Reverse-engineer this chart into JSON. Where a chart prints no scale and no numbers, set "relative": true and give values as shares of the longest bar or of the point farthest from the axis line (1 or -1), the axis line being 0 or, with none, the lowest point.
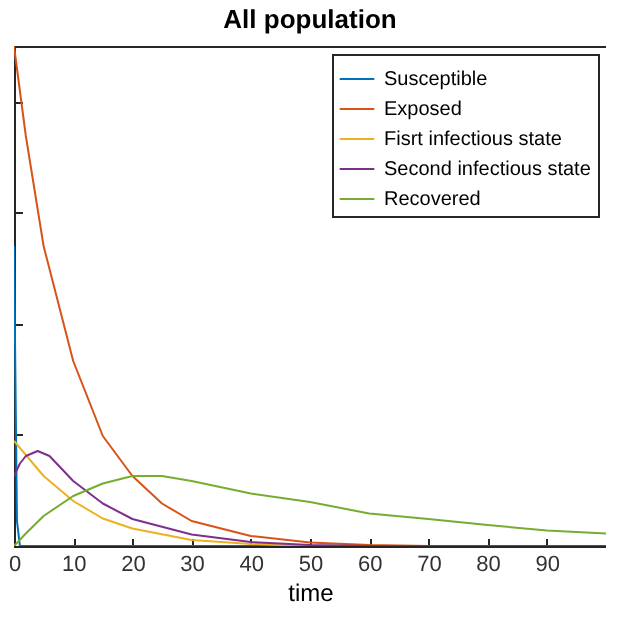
{
  "chart_data": {
    "type": "line",
    "title": "All population",
    "xlabel": "time",
    "relative": true,
    "xlim": [
      0,
      100
    ],
    "xticks": [
      0,
      10,
      20,
      30,
      40,
      50,
      60,
      70,
      80,
      90
    ],
    "legend": "top right",
    "grid": false,
    "series": [
      {
        "name": "Susceptible",
        "color": "#0072bd",
        "x": [
          0,
          0.5,
          1,
          100
        ],
        "values": [
          0.6,
          0.05,
          0,
          0
        ]
      },
      {
        "name": "Exposed",
        "color": "#d95319",
        "x": [
          0,
          2,
          5,
          10,
          15,
          20,
          25,
          30,
          40,
          50,
          60,
          70,
          100
        ],
        "values": [
          1,
          0.82,
          0.6,
          0.37,
          0.22,
          0.14,
          0.085,
          0.05,
          0.02,
          0.007,
          0.002,
          0,
          0
        ]
      },
      {
        "name": "Fisrt infectious state",
        "color": "#edb120",
        "x": [
          0,
          5,
          10,
          15,
          20,
          30,
          40,
          50,
          100
        ],
        "values": [
          0.21,
          0.14,
          0.09,
          0.055,
          0.035,
          0.012,
          0.004,
          0,
          0
        ]
      },
      {
        "name": "Second infectious state",
        "color": "#7e2f8e",
        "x": [
          0,
          1,
          2,
          4,
          6,
          10,
          15,
          20,
          30,
          40,
          50,
          60,
          100
        ],
        "values": [
          0.14,
          0.165,
          0.18,
          0.19,
          0.18,
          0.13,
          0.085,
          0.054,
          0.023,
          0.008,
          0.002,
          0,
          0
        ]
      },
      {
        "name": "Recovered",
        "color": "#77ac30",
        "x": [
          0,
          2,
          5,
          10,
          15,
          20,
          25,
          30,
          40,
          50,
          60,
          70,
          80,
          90,
          100
        ],
        "values": [
          0,
          0.025,
          0.06,
          0.1,
          0.125,
          0.14,
          0.14,
          0.13,
          0.105,
          0.088,
          0.065,
          0.054,
          0.042,
          0.031,
          0.025
        ]
      }
    ]
  }
}
